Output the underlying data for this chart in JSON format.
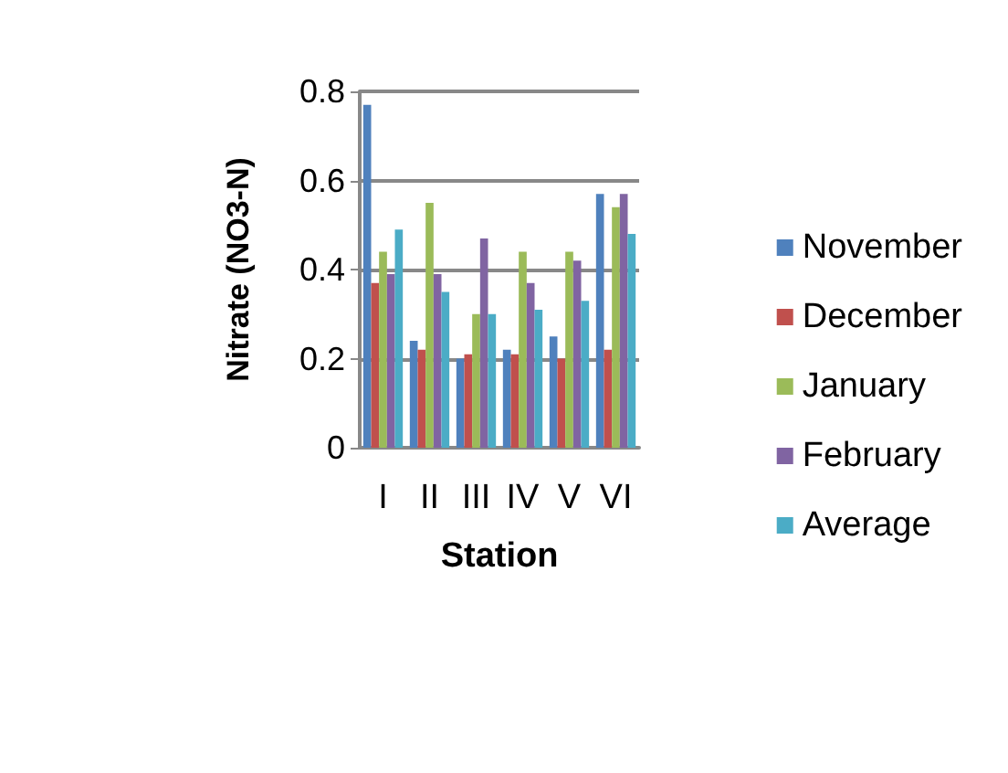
{
  "chart_data": {
    "type": "bar",
    "xlabel": "Station",
    "ylabel": "Nitrate (NO3-N)",
    "categories": [
      "I",
      "II",
      "III",
      "IV",
      "V",
      "VI"
    ],
    "series": [
      {
        "name": "November",
        "color": "#4f81bd",
        "values": [
          0.77,
          0.24,
          0.2,
          0.22,
          0.25,
          0.57
        ]
      },
      {
        "name": "December",
        "color": "#c0504d",
        "values": [
          0.37,
          0.22,
          0.21,
          0.21,
          0.2,
          0.22
        ]
      },
      {
        "name": "January",
        "color": "#9bbb59",
        "values": [
          0.44,
          0.55,
          0.3,
          0.44,
          0.44,
          0.54
        ]
      },
      {
        "name": "February",
        "color": "#8064a2",
        "values": [
          0.39,
          0.39,
          0.47,
          0.37,
          0.42,
          0.57
        ]
      },
      {
        "name": "Average",
        "color": "#4bacc6",
        "values": [
          0.49,
          0.35,
          0.3,
          0.31,
          0.33,
          0.48
        ]
      }
    ],
    "ylim": [
      0,
      0.8
    ],
    "yticks": [
      0,
      0.2,
      0.4,
      0.6,
      0.8
    ],
    "grid": "y",
    "legend": "right"
  }
}
